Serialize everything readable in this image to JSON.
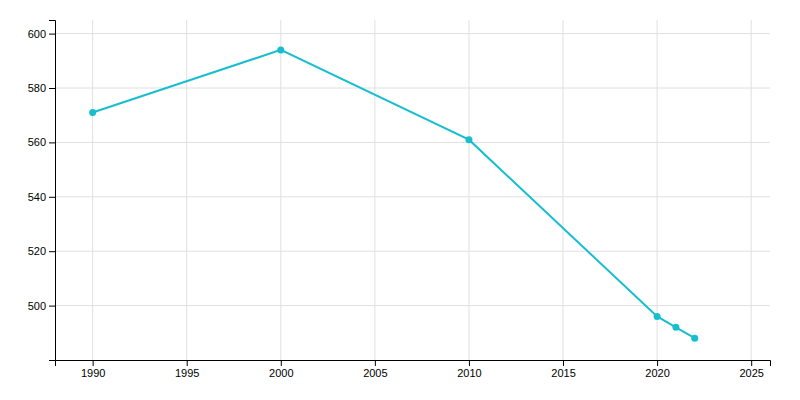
{
  "chart_data": {
    "type": "line",
    "x": [
      1990,
      2000,
      2010,
      2020,
      2021,
      2022
    ],
    "values": [
      571,
      594,
      561,
      496,
      492,
      488
    ],
    "color": "#17becf",
    "marker": "circle",
    "xlim": [
      1988,
      2026
    ],
    "ylim": [
      480,
      605
    ],
    "xticks": [
      1990,
      1995,
      2000,
      2005,
      2010,
      2015,
      2020,
      2025
    ],
    "yticks": [
      500,
      520,
      540,
      560,
      580,
      600
    ],
    "grid": true
  }
}
